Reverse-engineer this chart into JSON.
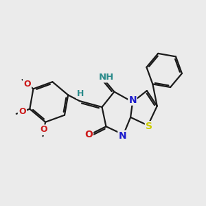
{
  "bg_color": "#ebebeb",
  "bond_color": "#1a1a1a",
  "bond_width": 1.6,
  "S_color": "#cccc00",
  "N_color": "#1a1acc",
  "O_color": "#cc1a1a",
  "teal_color": "#2a8a8a",
  "font_size_atom": 8.5,
  "font_size_small": 7.5,
  "imine_label": "NH",
  "H_label": "H",
  "S_label": "S",
  "N_label": "N",
  "O_label": "O"
}
